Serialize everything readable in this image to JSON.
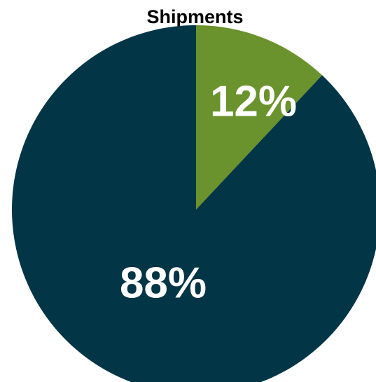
{
  "chart_data": {
    "type": "pie",
    "title": "Shipments",
    "start_angle_deg": 0,
    "direction": "clockwise",
    "slices": [
      {
        "value": 12,
        "label": "12%",
        "color": "#6a922d"
      },
      {
        "value": 88,
        "label": "88%",
        "color": "#023545"
      }
    ],
    "legend": "none"
  }
}
